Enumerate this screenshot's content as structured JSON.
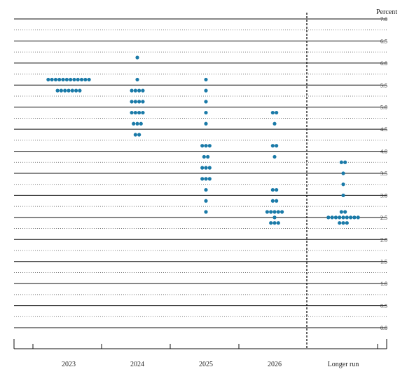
{
  "chart_data": {
    "type": "scatter",
    "unit_label": "Percent",
    "categories": [
      "2023",
      "2024",
      "2025",
      "2026",
      "Longer run"
    ],
    "ylim": [
      0,
      7
    ],
    "yticks": [
      "0.0",
      "0.5",
      "1.0",
      "1.5",
      "2.0",
      "2.5",
      "3.0",
      "3.5",
      "4.0",
      "4.5",
      "5.0",
      "5.5",
      "6.0",
      "6.5",
      "7.0"
    ],
    "grid": "dotted horizontal lines every 0.25, solid every 0.5",
    "separator": "dashed vertical line before Longer run",
    "dot_color": "#1a7aa8",
    "dots": [
      {
        "category": "2023",
        "values": [
          {
            "y": 5.625,
            "count": 12
          },
          {
            "y": 5.375,
            "count": 7
          }
        ]
      },
      {
        "category": "2024",
        "values": [
          {
            "y": 6.125,
            "count": 1
          },
          {
            "y": 5.625,
            "count": 1
          },
          {
            "y": 5.375,
            "count": 4
          },
          {
            "y": 5.125,
            "count": 4
          },
          {
            "y": 4.875,
            "count": 4
          },
          {
            "y": 4.625,
            "count": 3
          },
          {
            "y": 4.375,
            "count": 2
          }
        ]
      },
      {
        "category": "2025",
        "values": [
          {
            "y": 5.625,
            "count": 1
          },
          {
            "y": 5.375,
            "count": 1
          },
          {
            "y": 5.125,
            "count": 1
          },
          {
            "y": 4.875,
            "count": 1
          },
          {
            "y": 4.625,
            "count": 1
          },
          {
            "y": 4.125,
            "count": 3
          },
          {
            "y": 3.875,
            "count": 2
          },
          {
            "y": 3.625,
            "count": 3
          },
          {
            "y": 3.375,
            "count": 3
          },
          {
            "y": 3.125,
            "count": 1
          },
          {
            "y": 2.875,
            "count": 1
          },
          {
            "y": 2.625,
            "count": 1
          }
        ]
      },
      {
        "category": "2026",
        "values": [
          {
            "y": 4.875,
            "count": 2
          },
          {
            "y": 4.625,
            "count": 1
          },
          {
            "y": 4.125,
            "count": 2
          },
          {
            "y": 3.875,
            "count": 1
          },
          {
            "y": 3.125,
            "count": 2
          },
          {
            "y": 2.875,
            "count": 2
          },
          {
            "y": 2.625,
            "count": 5
          },
          {
            "y": 2.5,
            "count": 1
          },
          {
            "y": 2.375,
            "count": 3
          }
        ]
      },
      {
        "category": "Longer run",
        "values": [
          {
            "y": 3.75,
            "count": 2
          },
          {
            "y": 3.5,
            "count": 1
          },
          {
            "y": 3.25,
            "count": 1
          },
          {
            "y": 3.0,
            "count": 1
          },
          {
            "y": 2.625,
            "count": 2
          },
          {
            "y": 2.5,
            "count": 9
          },
          {
            "y": 2.375,
            "count": 3
          }
        ]
      }
    ]
  }
}
